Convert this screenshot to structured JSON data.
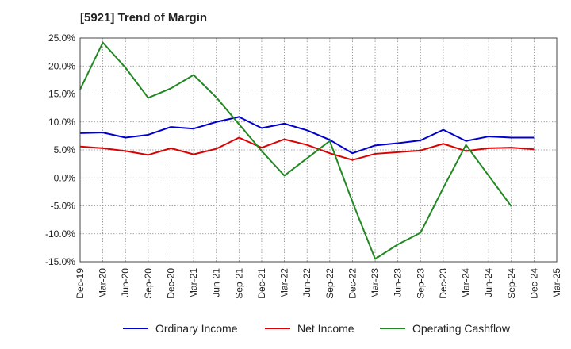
{
  "chart_data": {
    "type": "line",
    "title": "[5921]  Trend of Margin",
    "xlabel": "",
    "ylabel": "",
    "categories": [
      "Dec-19",
      "Mar-20",
      "Jun-20",
      "Sep-20",
      "Dec-20",
      "Mar-21",
      "Jun-21",
      "Sep-21",
      "Dec-21",
      "Mar-22",
      "Jun-22",
      "Sep-22",
      "Dec-22",
      "Mar-23",
      "Jun-23",
      "Sep-23",
      "Dec-23",
      "Mar-24",
      "Jun-24",
      "Sep-24",
      "Dec-24",
      "Mar-25"
    ],
    "y_ticks": [
      25,
      20,
      15,
      10,
      5,
      0,
      -5,
      -10,
      -15
    ],
    "y_tick_labels": [
      "25.0%",
      "20.0%",
      "15.0%",
      "10.0%",
      "5.0%",
      "0.0%",
      "-5.0%",
      "-10.0%",
      "-15.0%"
    ],
    "ylim": [
      -15.0,
      25.0
    ],
    "grid": true,
    "legend_position": "bottom",
    "series": [
      {
        "name": "Ordinary Income",
        "color": "#0000cc",
        "values": [
          8.0,
          8.1,
          7.2,
          7.7,
          9.1,
          8.8,
          10.0,
          10.9,
          8.9,
          9.7,
          8.5,
          6.8,
          4.4,
          5.8,
          6.2,
          6.7,
          8.6,
          6.6,
          7.4,
          7.2,
          7.2,
          null
        ]
      },
      {
        "name": "Net Income",
        "color": "#dd0000",
        "values": [
          5.6,
          5.3,
          4.8,
          4.1,
          5.3,
          4.2,
          5.2,
          7.2,
          5.4,
          6.9,
          5.9,
          4.4,
          3.2,
          4.3,
          4.6,
          4.9,
          6.1,
          4.8,
          5.3,
          5.4,
          5.1,
          null
        ]
      },
      {
        "name": "Operating Cashflow",
        "color": "#228822",
        "values": [
          15.8,
          24.2,
          19.7,
          14.3,
          16.0,
          18.4,
          14.4,
          9.6,
          4.8,
          0.4,
          3.5,
          6.6,
          -4.3,
          -14.5,
          -11.9,
          -9.8,
          -1.8,
          5.9,
          0.4,
          -5.1,
          null,
          null
        ]
      }
    ]
  }
}
